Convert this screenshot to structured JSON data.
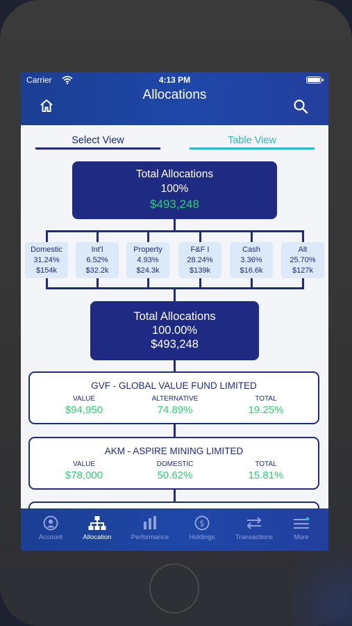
{
  "status_bar": {
    "carrier": "Carrier",
    "time": "4:13 PM"
  },
  "header": {
    "title": "Allocations"
  },
  "tabs": {
    "select_view": "Select View",
    "table_view": "Table View"
  },
  "summary": {
    "label": "Total Allocations",
    "percent": "100%",
    "amount": "$493,248"
  },
  "categories": [
    {
      "name": "Domestic",
      "percent": "31.24%",
      "amount": "$154k"
    },
    {
      "name": "Int'l",
      "percent": "6.52%",
      "amount": "$32.2k"
    },
    {
      "name": "Property",
      "percent": "4.93%",
      "amount": "$24.3k"
    },
    {
      "name": "F&F I",
      "percent": "28.24%",
      "amount": "$139k"
    },
    {
      "name": "Cash",
      "percent": "3.36%",
      "amount": "$16.6k"
    },
    {
      "name": "Alt",
      "percent": "25.70%",
      "amount": "$127k"
    }
  ],
  "detail_total": {
    "label": "Total Allocations",
    "percent": "100.00%",
    "amount": "$493,248"
  },
  "funds": [
    {
      "name": "GVF - GLOBAL VALUE FUND LIMITED",
      "value_header": "VALUE",
      "value": "$94,950",
      "class_header": "ALTERNATIVE",
      "class_value": "74.89%",
      "total_header": "TOTAL",
      "total_value": "19.25%"
    },
    {
      "name": "AKM - ASPIRE MINING LIMITED",
      "value_header": "VALUE",
      "value": "$78,000",
      "class_header": "DOMESTIC",
      "class_value": "50.62%",
      "total_header": "TOTAL",
      "total_value": "15.81%"
    }
  ],
  "tab_bar": [
    {
      "label": "Account",
      "icon": "account-icon"
    },
    {
      "label": "Allocation",
      "icon": "allocation-icon"
    },
    {
      "label": "Performance",
      "icon": "performance-icon"
    },
    {
      "label": "Holdings",
      "icon": "holdings-icon"
    },
    {
      "label": "Transactions",
      "icon": "transactions-icon"
    },
    {
      "label": "More",
      "icon": "more-icon"
    }
  ],
  "colors": {
    "navy": "#1f2b82",
    "header_blue": "#1f47a8",
    "accent_teal": "#2bb6c9",
    "positive_green": "#2ecc71",
    "category_bg": "#dce9f8"
  }
}
